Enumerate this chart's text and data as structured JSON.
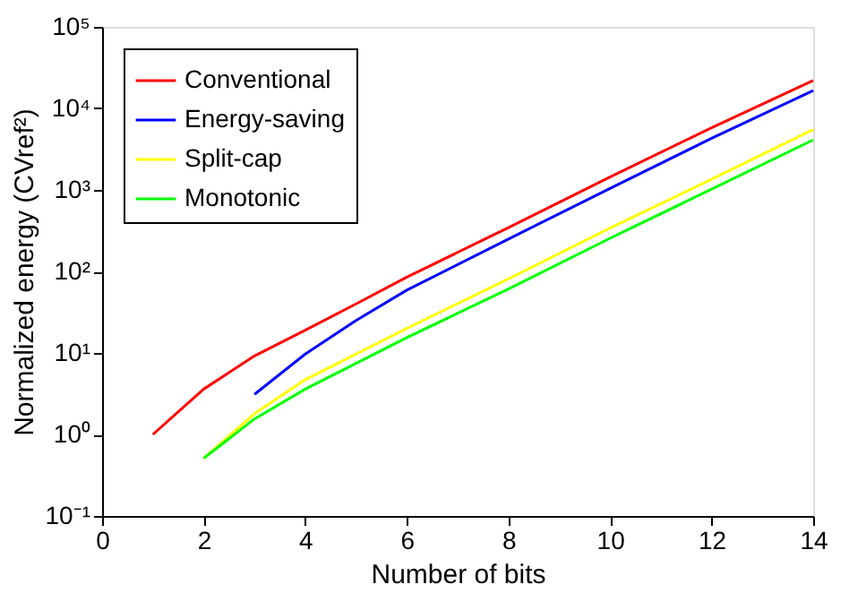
{
  "chart_data": {
    "type": "line",
    "xlabel": "Number of bits",
    "ylabel": "Normalized energy (CVref²)",
    "log": "y",
    "grid": false,
    "legend": "top left",
    "marker": "none",
    "line_style": "solid",
    "xlim": [
      0,
      14
    ],
    "xticks": [
      0,
      2,
      4,
      6,
      8,
      10,
      12,
      14
    ],
    "ylim": [
      0.1,
      100000
    ],
    "yticks": [
      {
        "value": 0.1,
        "label": "10⁻¹"
      },
      {
        "value": 1,
        "label": "10⁰"
      },
      {
        "value": 10,
        "label": "10¹"
      },
      {
        "value": 100,
        "label": "10²"
      },
      {
        "value": 1000,
        "label": "10³"
      },
      {
        "value": 10000,
        "label": "10⁴"
      },
      {
        "value": 100000,
        "label": "10⁵"
      }
    ],
    "series": [
      {
        "name": "Conventional",
        "color": "#ff0000",
        "x": [
          1,
          2,
          3,
          4,
          5,
          6,
          8,
          10,
          12,
          14
        ],
        "values": [
          1.0,
          3.6,
          9.2,
          19,
          40,
          85,
          345,
          1440,
          5800,
          22000
        ]
      },
      {
        "name": "Energy-saving",
        "color": "#0000ff",
        "x": [
          3,
          4,
          5,
          6,
          8,
          10,
          12,
          14
        ],
        "values": [
          3.1,
          9.7,
          25,
          59,
          250,
          1040,
          4300,
          16500
        ]
      },
      {
        "name": "Split-cap",
        "color": "#ffff00",
        "x": [
          2,
          3,
          4,
          6,
          8,
          10,
          12,
          14
        ],
        "values": [
          0.51,
          1.8,
          4.7,
          20,
          81,
          340,
          1350,
          5500
        ]
      },
      {
        "name": "Monotonic",
        "color": "#00ff00",
        "x": [
          2,
          3,
          4,
          6,
          8,
          10,
          12,
          14
        ],
        "values": [
          0.51,
          1.55,
          3.6,
          15.4,
          61,
          255,
          1020,
          4100
        ]
      }
    ]
  }
}
